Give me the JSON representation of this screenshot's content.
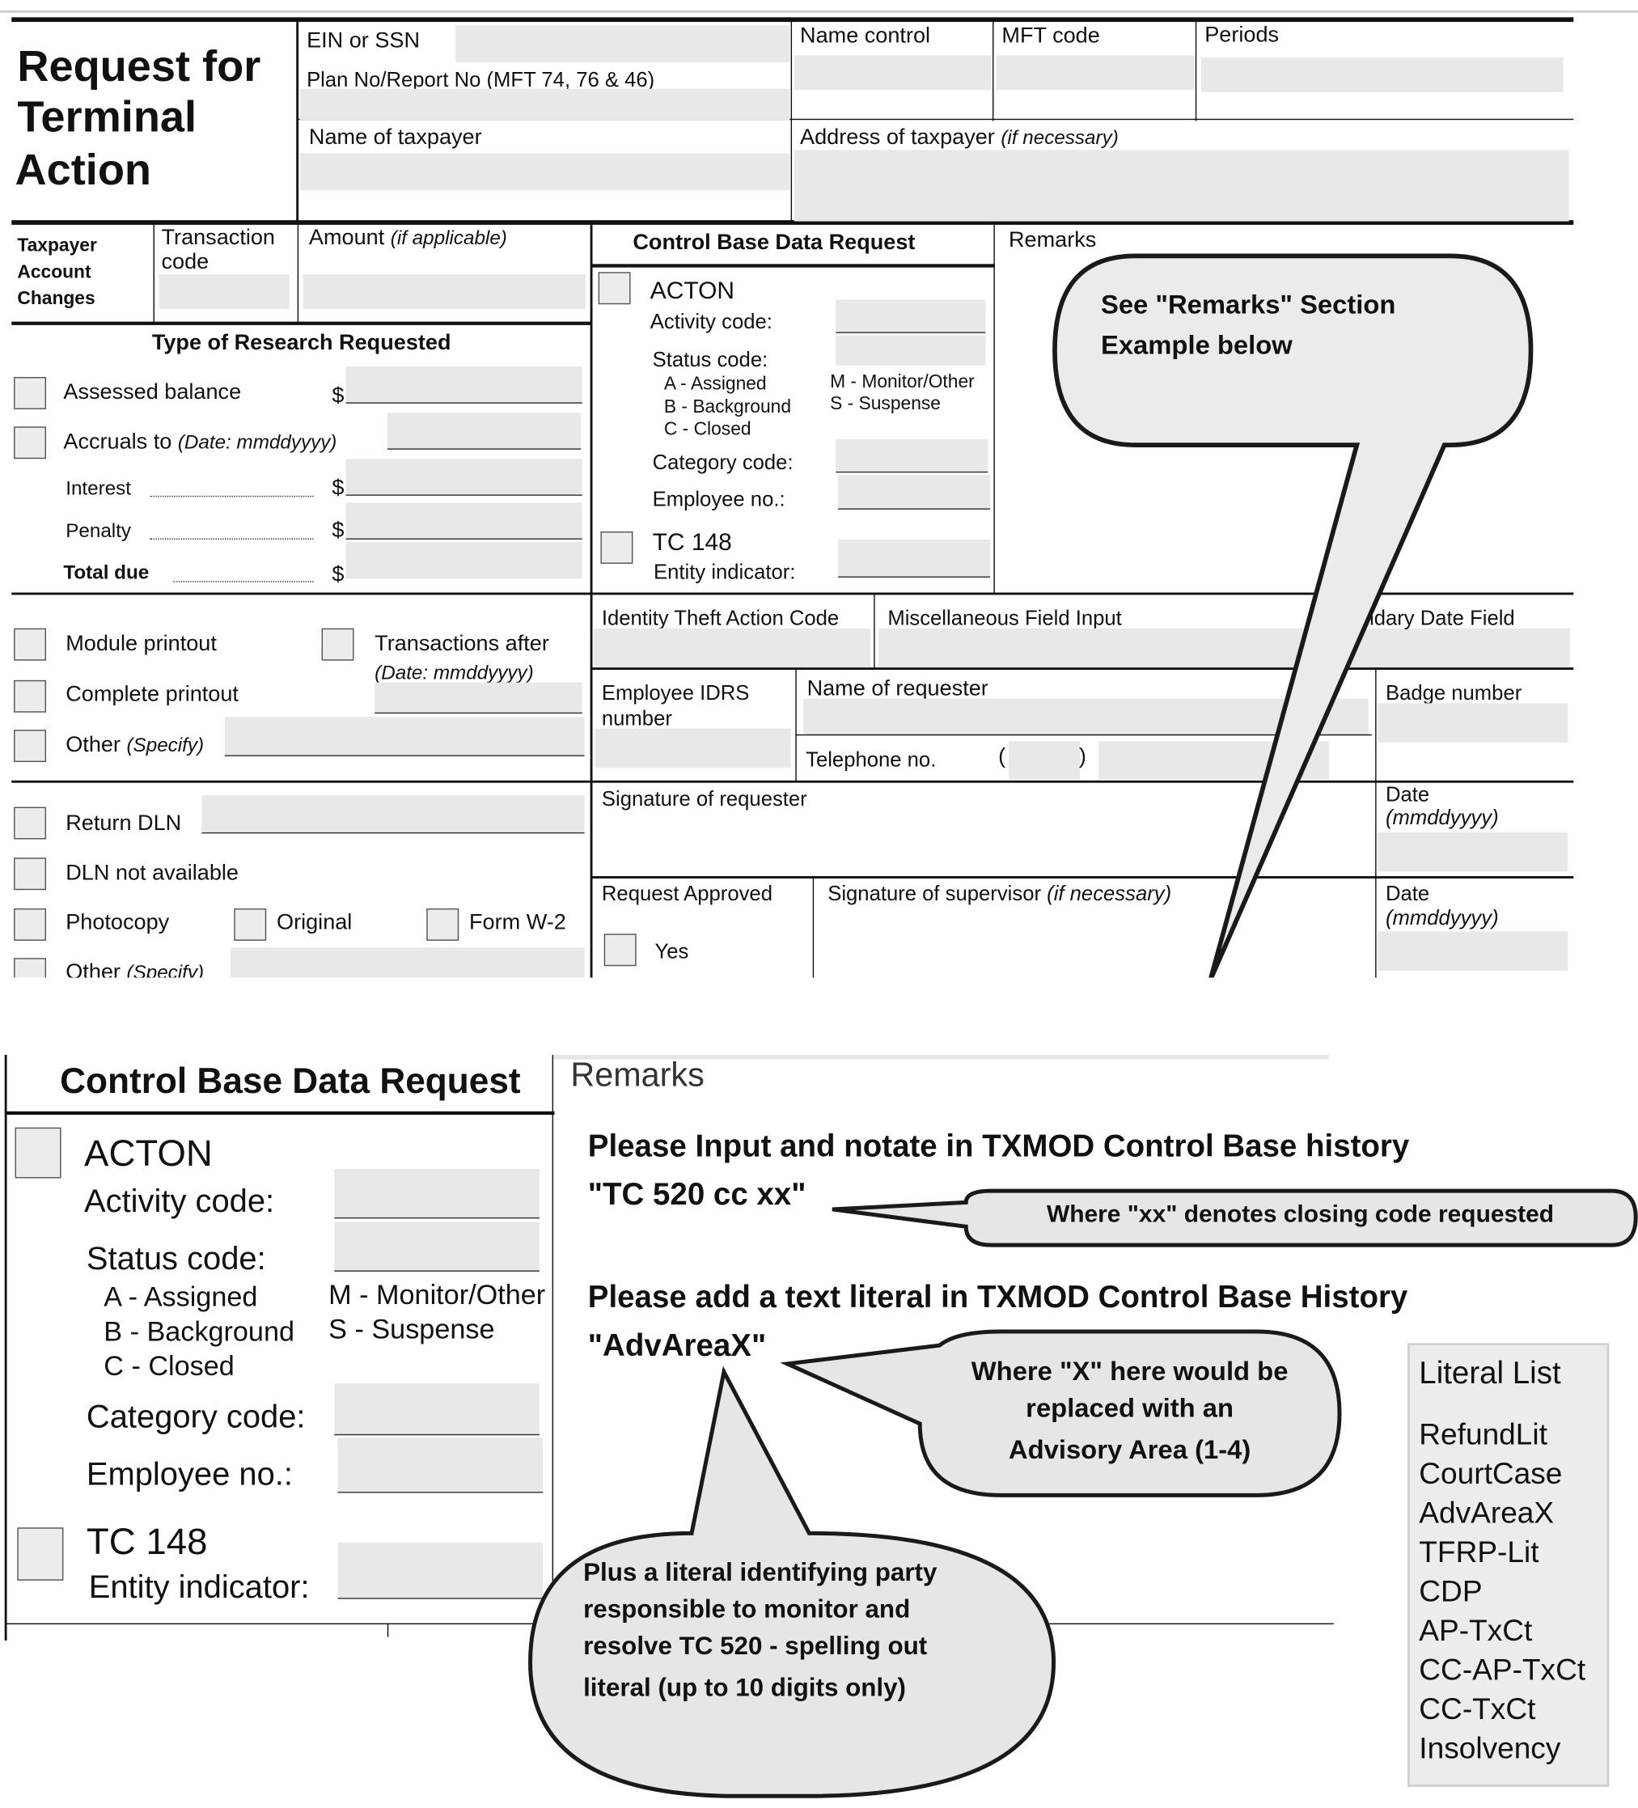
{
  "form": {
    "title": [
      "Request for",
      "Terminal",
      "Action"
    ],
    "ein_label": "EIN or SSN",
    "plan_label": "Plan No/Report No (MFT 74, 76 & 46)",
    "name_control_label": "Name control",
    "mft_label": "MFT code",
    "periods_label": "Periods",
    "taxpayer_name_label": "Name of taxpayer",
    "address_label": "Address of taxpayer",
    "address_note": "(if necessary)",
    "tac_label": [
      "Taxpayer",
      "Account",
      "Changes"
    ],
    "transaction_code_label": [
      "Transaction",
      "code"
    ],
    "amount_label": "Amount",
    "amount_note": "(if applicable)",
    "research": {
      "heading": "Type of Research Requested",
      "assessed_balance": "Assessed balance",
      "accruals": "Accruals to",
      "accruals_note": "(Date: mmddyyyy)",
      "interest": "Interest",
      "penalty": "Penalty",
      "total_due": "Total due",
      "dollar": "$",
      "module_printout": "Module printout",
      "transactions_after": "Transactions after",
      "transactions_after_note": "(Date: mmddyyyy)",
      "complete_printout": "Complete printout",
      "other": "Other",
      "other_note": "(Specify)",
      "return_dln": "Return DLN",
      "dln_not_available": "DLN not available",
      "photocopy": "Photocopy",
      "original": "Original",
      "form_w2": "Form W-2"
    },
    "cbdr": {
      "heading": "Control Base Data Request",
      "acton": "ACTON",
      "activity_code": "Activity code:",
      "status_code": "Status code:",
      "status_options": [
        "A - Assigned",
        "B - Background",
        "C - Closed",
        "M - Monitor/Other",
        "S - Suspense"
      ],
      "category_code": "Category code:",
      "employee_no": "Employee no.:",
      "tc148": "TC 148",
      "entity_indicator": "Entity indicator:"
    },
    "remarks_label": "Remarks",
    "callout": [
      "See \"Remarks\" Section",
      "Example below"
    ],
    "identity_theft": "Identity Theft Action Code",
    "misc_field": "Miscellaneous Field Input",
    "secondary_date": "ndary Date Field",
    "employee_idrs": [
      "Employee IDRS",
      "number"
    ],
    "requester_name": "Name of requester",
    "badge": "Badge number",
    "telephone": "Telephone no.",
    "paren_open": "(",
    "paren_close": ")",
    "signature_requester": "Signature of requester",
    "date": "Date",
    "date_note": "(mmddyyyy)",
    "request_approved": "Request Approved",
    "yes": "Yes",
    "signature_supervisor": "Signature of supervisor",
    "supervisor_note": "(if necessary)"
  },
  "example": {
    "remarks_label": "Remarks",
    "line1": "Please Input and notate in TXMOD Control Base history",
    "code1": "\"TC 520 cc xx\"",
    "bubble1": "Where \"xx\" denotes closing code requested",
    "line2": "Please add a text literal in TXMOD Control Base History",
    "code2": "\"AdvAreaX\"",
    "bubble2": [
      "Where \"X\" here would be",
      "replaced with an",
      "Advisory Area (1-4)"
    ],
    "bubble3": [
      "Plus a literal identifying party",
      "responsible to monitor and",
      "resolve TC 520 - spelling out",
      "literal (up to 10 digits only)"
    ],
    "literal_list": {
      "title": "Literal List",
      "items": [
        "RefundLit",
        "CourtCase",
        "AdvAreaX",
        "TFRP-Lit",
        "CDP",
        "AP-TxCt",
        "CC-AP-TxCt",
        "CC-TxCt",
        "Insolvency"
      ]
    }
  },
  "colors": {
    "field_fill": "#e8e8e8",
    "bubble_fill": "#ebebeb",
    "ink": "#111111"
  }
}
